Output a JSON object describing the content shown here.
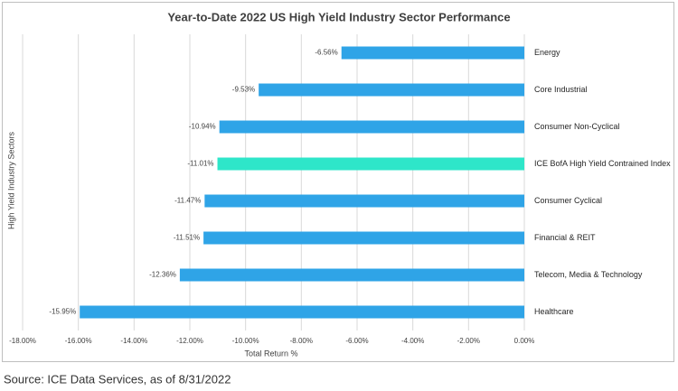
{
  "chart_data": {
    "type": "bar",
    "orientation": "horizontal",
    "title": "Year-to-Date 2022 US High Yield Industry Sector Performance",
    "x_label": "Total Return %",
    "y_label": "High Yield Industry Sectors",
    "categories": [
      "Energy",
      "Core Industrial",
      "Consumer Non-Cyclical",
      "ICE BofA High Yield Contrained Index",
      "Consumer Cyclical",
      "Financial & REIT",
      "Telecom, Media & Technology",
      "Healthcare"
    ],
    "values": [
      -6.56,
      -9.53,
      -10.94,
      -11.01,
      -11.47,
      -11.51,
      -12.36,
      -15.95
    ],
    "value_labels": [
      "-6.56%",
      "-9.53%",
      "-10.94%",
      "-11.01%",
      "-11.47%",
      "-11.51%",
      "-12.36%",
      "-15.95%"
    ],
    "colors": [
      "#2fa4e7",
      "#2fa4e7",
      "#2fa4e7",
      "#2ee6c9",
      "#2fa4e7",
      "#2fa4e7",
      "#2fa4e7",
      "#2fa4e7"
    ],
    "xlim": [
      -18,
      0
    ],
    "xticks": [
      {
        "value": -18,
        "label": "-18.00%"
      },
      {
        "value": -16,
        "label": "-16.00%"
      },
      {
        "value": -14,
        "label": "-14.00%"
      },
      {
        "value": -12,
        "label": "-12.00%"
      },
      {
        "value": -10,
        "label": "-10.00%"
      },
      {
        "value": -8,
        "label": "-8.00%"
      },
      {
        "value": -6,
        "label": "-6.00%"
      },
      {
        "value": -4,
        "label": "-4.00%"
      },
      {
        "value": -2,
        "label": "-2.00%"
      },
      {
        "value": 0,
        "label": "0.00%"
      }
    ],
    "grid": true
  },
  "source": "Source: ICE Data Services, as of 8/31/2022"
}
